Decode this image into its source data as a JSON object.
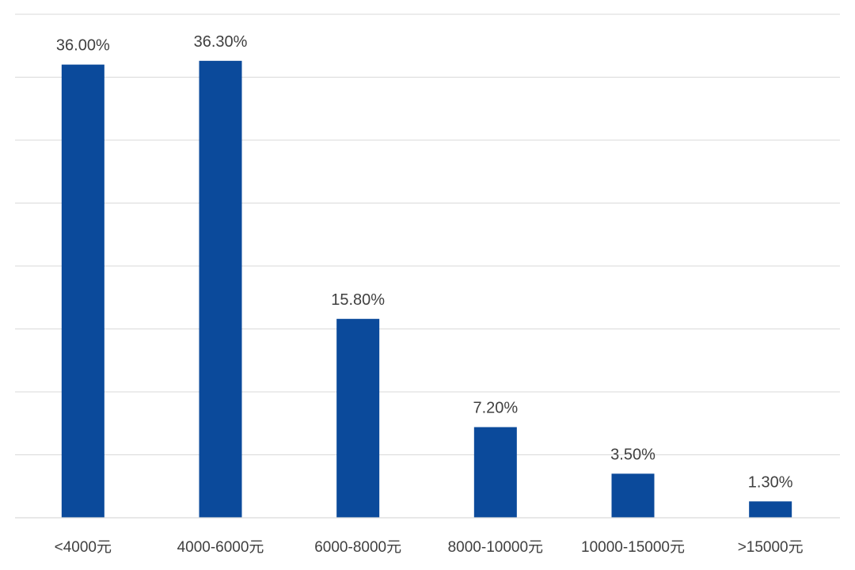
{
  "chart_data": {
    "type": "bar",
    "categories": [
      "<4000元",
      "4000-6000元",
      "6000-8000元",
      "8000-10000元",
      "10000-15000元",
      ">15000元"
    ],
    "values": [
      36.0,
      36.3,
      15.8,
      7.2,
      3.5,
      1.3
    ],
    "value_labels": [
      "36.00%",
      "36.30%",
      "15.80%",
      "7.20%",
      "3.50%",
      "1.30%"
    ],
    "title": "",
    "xlabel": "",
    "ylabel": "",
    "ylim": [
      0,
      40
    ],
    "grid": true,
    "bar_color": "#0b4a9b"
  }
}
